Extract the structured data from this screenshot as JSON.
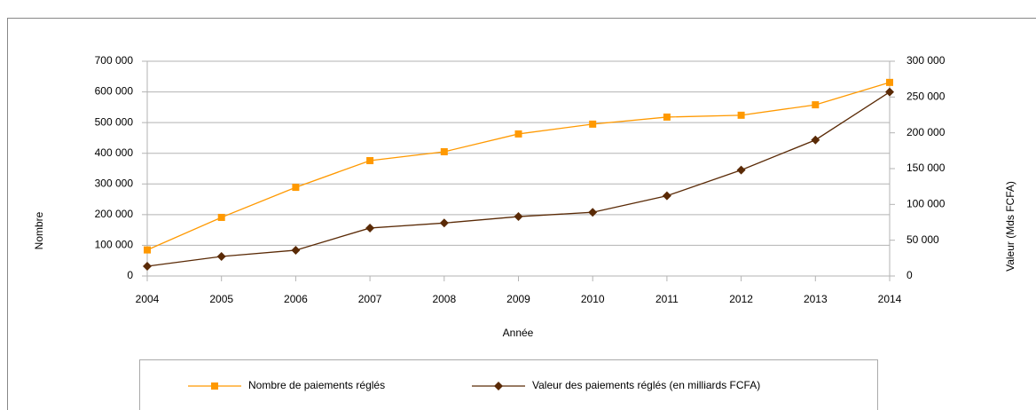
{
  "chart_data": {
    "type": "line",
    "x_label": "Année",
    "y_label": "Nombre",
    "y2_label": "Valeur (Mds FCFA)",
    "categories": [
      "2004",
      "2005",
      "2006",
      "2007",
      "2008",
      "2009",
      "2010",
      "2011",
      "2012",
      "2013",
      "2014"
    ],
    "series": [
      {
        "name": "Nombre de paiements réglés",
        "color": "#ff9900",
        "marker": "square",
        "values": [
          85000,
          191000,
          289000,
          376000,
          405000,
          463000,
          495000,
          518000,
          524000,
          558000,
          631000
        ]
      },
      {
        "name": "Valeur des paiements réglés  (en milliards FCFA)",
        "color": "#5a2a06",
        "marker": "diamond",
        "axis": "y2",
        "values": [
          13600,
          27300,
          36000,
          67000,
          74000,
          83000,
          89000,
          112000,
          148000,
          190000,
          257000
        ]
      }
    ],
    "ylim": [
      0,
      700000
    ],
    "yticks": [
      0,
      {
        "value": 100000,
        "label": "100 000"
      },
      {
        "value": 200000,
        "label": "200 000"
      },
      {
        "value": 300000,
        "label": "300 000"
      },
      {
        "value": 400000,
        "label": "400 000"
      },
      {
        "value": 500000,
        "label": "500 000"
      },
      {
        "value": 600000,
        "label": "600 000"
      },
      {
        "value": 700000,
        "label": "700 000"
      }
    ],
    "y2lim": [
      0,
      300000
    ],
    "y2ticks": [
      0,
      {
        "value": 50000,
        "label": "50 000"
      },
      {
        "value": 100000,
        "label": "100 000"
      },
      {
        "value": 150000,
        "label": "150 000"
      },
      {
        "value": 200000,
        "label": "200 000"
      },
      {
        "value": 250000,
        "label": "250 000"
      },
      {
        "value": 300000,
        "label": "300 000"
      }
    ],
    "grid": true,
    "legend": "bottom"
  }
}
